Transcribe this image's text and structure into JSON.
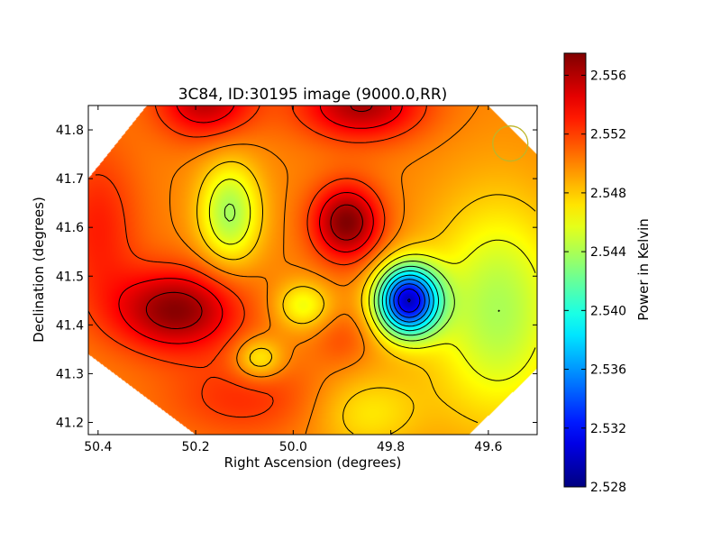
{
  "chart_data": {
    "type": "heatmap",
    "title": "3C84, ID:30195 image (9000.0,RR)",
    "xlabel": "Right Ascension (degrees)",
    "ylabel": "Declination (degrees)",
    "xlim": [
      50.42,
      49.5
    ],
    "ylim": [
      41.175,
      41.85
    ],
    "x_ticks": [
      {
        "value": 50.4,
        "label": "50.4"
      },
      {
        "value": 50.2,
        "label": "50.2"
      },
      {
        "value": 50.0,
        "label": "50.0"
      },
      {
        "value": 49.8,
        "label": "49.8"
      },
      {
        "value": 49.6,
        "label": "49.6"
      }
    ],
    "y_ticks": [
      {
        "value": 41.2,
        "label": "41.2"
      },
      {
        "value": 41.3,
        "label": "41.3"
      },
      {
        "value": 41.4,
        "label": "41.4"
      },
      {
        "value": 41.5,
        "label": "41.5"
      },
      {
        "value": 41.6,
        "label": "41.6"
      },
      {
        "value": 41.7,
        "label": "41.7"
      },
      {
        "value": 41.8,
        "label": "41.8"
      }
    ],
    "colorbar": {
      "label": "Power in Kelvin",
      "range": [
        2.528,
        2.5575
      ],
      "colormap": "jet",
      "ticks": [
        {
          "value": 2.528,
          "label": "2.528"
        },
        {
          "value": 2.532,
          "label": "2.532"
        },
        {
          "value": 2.536,
          "label": "2.536"
        },
        {
          "value": 2.54,
          "label": "2.540"
        },
        {
          "value": 2.544,
          "label": "2.544"
        },
        {
          "value": 2.548,
          "label": "2.548"
        },
        {
          "value": 2.552,
          "label": "2.552"
        },
        {
          "value": 2.556,
          "label": "2.556"
        }
      ]
    },
    "background_level": 2.55,
    "features": [
      {
        "ra": 50.18,
        "dec": 41.86,
        "amp": 0.0058,
        "sra": 0.07,
        "sdec": 0.055
      },
      {
        "ra": 49.86,
        "dec": 41.85,
        "amp": 0.0062,
        "sra": 0.09,
        "sdec": 0.05
      },
      {
        "ra": 50.24,
        "dec": 41.43,
        "amp": 0.0072,
        "sra": 0.09,
        "sdec": 0.06
      },
      {
        "ra": 49.89,
        "dec": 41.61,
        "amp": 0.0075,
        "sra": 0.05,
        "sdec": 0.055
      },
      {
        "ra": 50.4,
        "dec": 41.6,
        "amp": 0.003,
        "sra": 0.06,
        "sdec": 0.12
      },
      {
        "ra": 50.1,
        "dec": 41.25,
        "amp": 0.0025,
        "sra": 0.12,
        "sdec": 0.06
      },
      {
        "ra": 50.13,
        "dec": 41.63,
        "amp": -0.0062,
        "sra": 0.045,
        "sdec": 0.075
      },
      {
        "ra": 49.765,
        "dec": 41.45,
        "amp": -0.019,
        "sra": 0.045,
        "sdec": 0.05
      },
      {
        "ra": 49.58,
        "dec": 41.43,
        "amp": -0.006,
        "sra": 0.1,
        "sdec": 0.16
      },
      {
        "ra": 49.98,
        "dec": 41.44,
        "amp": -0.004,
        "sra": 0.04,
        "sdec": 0.035
      },
      {
        "ra": 50.07,
        "dec": 41.33,
        "amp": -0.004,
        "sra": 0.035,
        "sdec": 0.03
      },
      {
        "ra": 49.85,
        "dec": 41.22,
        "amp": -0.003,
        "sra": 0.08,
        "sdec": 0.06
      },
      {
        "ra": 49.9,
        "dec": 41.37,
        "amp": 0.0015,
        "sra": 0.04,
        "sdec": 0.04
      }
    ],
    "contour_levels": [
      2.53,
      2.532,
      2.534,
      2.536,
      2.538,
      2.54,
      2.542,
      2.544,
      2.546,
      2.548,
      2.55,
      2.552,
      2.554,
      2.556
    ],
    "data_region_polygon_radec": [
      [
        50.42,
        41.7
      ],
      [
        50.3,
        41.85
      ],
      [
        49.6,
        41.85
      ],
      [
        49.5,
        41.75
      ],
      [
        49.5,
        41.31
      ],
      [
        49.64,
        41.175
      ],
      [
        50.2,
        41.175
      ],
      [
        50.42,
        41.34
      ]
    ],
    "beam_marker": {
      "ra": 49.555,
      "dec": 41.772,
      "radius_deg": 0.036,
      "color": "#bdb52a"
    },
    "grid": false,
    "legend": "none"
  }
}
